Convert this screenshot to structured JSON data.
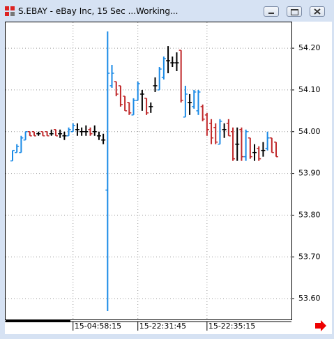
{
  "window": {
    "title": "S.EBAY - eBay Inc, 15 Sec ...Working..."
  },
  "chart_data": {
    "type": "ohlc",
    "categories": [
      null,
      null,
      null,
      null,
      null,
      null,
      null,
      null,
      null,
      null,
      null,
      null,
      null,
      null,
      "15-04:58:15",
      null,
      null,
      null,
      null,
      null,
      null,
      null,
      null,
      null,
      null,
      null,
      null,
      null,
      null,
      "15-22:31:45",
      null,
      null,
      null,
      null,
      null,
      null,
      null,
      null,
      null,
      null,
      null,
      null,
      null,
      null,
      null,
      "15-22:35:15",
      null,
      null,
      null,
      null,
      null,
      null,
      null,
      null,
      null,
      null,
      null,
      null,
      null,
      null,
      null,
      null
    ],
    "series": [
      {
        "up_color": "#1a8ae6",
        "down_color": "#c0282a",
        "flat_color": "#000000",
        "open": [
          53.93,
          53.95,
          53.95,
          53.98,
          54.0,
          54.0,
          53.995,
          54.0,
          54.0,
          53.995,
          54.005,
          53.995,
          53.99,
          53.99,
          54.0,
          54.005,
          54.0,
          54.0,
          54.005,
          54.0,
          53.99,
          53.98,
          53.86,
          54.11,
          54.12,
          54.11,
          54.085,
          54.07,
          54.04,
          54.075,
          54.09,
          54.08,
          54.06,
          54.11,
          54.1,
          54.13,
          54.17,
          54.165,
          54.165,
          54.195,
          54.035,
          54.07,
          54.06,
          54.05,
          54.06,
          54.04,
          54.02,
          54.01,
          53.97,
          54.005,
          54.02,
          54.0,
          53.97,
          54.005,
          53.94,
          53.985,
          53.95,
          53.96,
          53.955,
          53.96,
          53.985,
          53.975
        ],
        "high": [
          53.955,
          53.97,
          53.99,
          54.0,
          54.0,
          54.0,
          54.0,
          54.0,
          54.0,
          54.005,
          54.005,
          54.005,
          54.0,
          54.01,
          54.02,
          54.02,
          54.01,
          54.015,
          54.01,
          54.015,
          54.0,
          53.995,
          54.24,
          54.16,
          54.12,
          54.11,
          54.085,
          54.07,
          54.08,
          54.12,
          54.1,
          54.08,
          54.07,
          54.13,
          54.155,
          54.18,
          54.205,
          54.18,
          54.19,
          54.195,
          54.11,
          54.09,
          54.1,
          54.1,
          54.065,
          54.045,
          54.03,
          54.02,
          54.03,
          54.02,
          54.03,
          54.01,
          54.01,
          54.01,
          54.005,
          53.985,
          53.97,
          53.965,
          53.975,
          54.0,
          53.985,
          53.975
        ],
        "low": [
          53.93,
          53.95,
          53.95,
          53.98,
          53.99,
          53.99,
          53.99,
          53.99,
          53.99,
          53.99,
          53.99,
          53.985,
          53.98,
          53.99,
          54.0,
          53.99,
          53.99,
          53.99,
          53.99,
          53.99,
          53.98,
          53.97,
          53.57,
          54.105,
          54.085,
          54.06,
          54.05,
          54.04,
          54.04,
          54.075,
          54.05,
          54.04,
          54.045,
          54.095,
          54.1,
          54.125,
          54.14,
          54.155,
          54.145,
          54.07,
          54.035,
          54.04,
          54.055,
          54.04,
          54.025,
          53.99,
          53.97,
          53.97,
          53.97,
          53.985,
          53.99,
          53.93,
          53.93,
          53.93,
          53.93,
          53.935,
          53.93,
          53.93,
          53.94,
          53.955,
          53.95,
          53.94
        ],
        "close": [
          53.955,
          53.965,
          53.985,
          54.0,
          53.99,
          53.99,
          53.995,
          53.99,
          53.99,
          53.995,
          53.99,
          53.995,
          53.99,
          54.005,
          54.015,
          54.005,
          54.0,
          54.0,
          53.995,
          54.0,
          53.99,
          53.98,
          54.14,
          54.14,
          54.09,
          54.065,
          54.05,
          54.045,
          54.075,
          54.115,
          54.09,
          54.045,
          54.06,
          54.11,
          54.15,
          54.175,
          54.17,
          54.165,
          54.165,
          54.075,
          54.09,
          54.07,
          54.095,
          54.095,
          54.03,
          54.005,
          53.985,
          53.975,
          54.025,
          54.005,
          53.99,
          53.935,
          53.97,
          53.94,
          54.0,
          53.94,
          53.95,
          53.935,
          53.955,
          53.985,
          53.95,
          53.94
        ]
      }
    ],
    "ylim": [
      53.55,
      54.262
    ],
    "yticks": [
      {
        "value": 53.6,
        "label": "53.60"
      },
      {
        "value": 53.7,
        "label": "53.70"
      },
      {
        "value": 53.8,
        "label": "53.80"
      },
      {
        "value": 53.9,
        "label": "53.90"
      },
      {
        "value": 54.0,
        "label": "54.00"
      },
      {
        "value": 54.1,
        "label": "54.10"
      },
      {
        "value": 54.2,
        "label": "54.20"
      }
    ],
    "grid": true
  }
}
